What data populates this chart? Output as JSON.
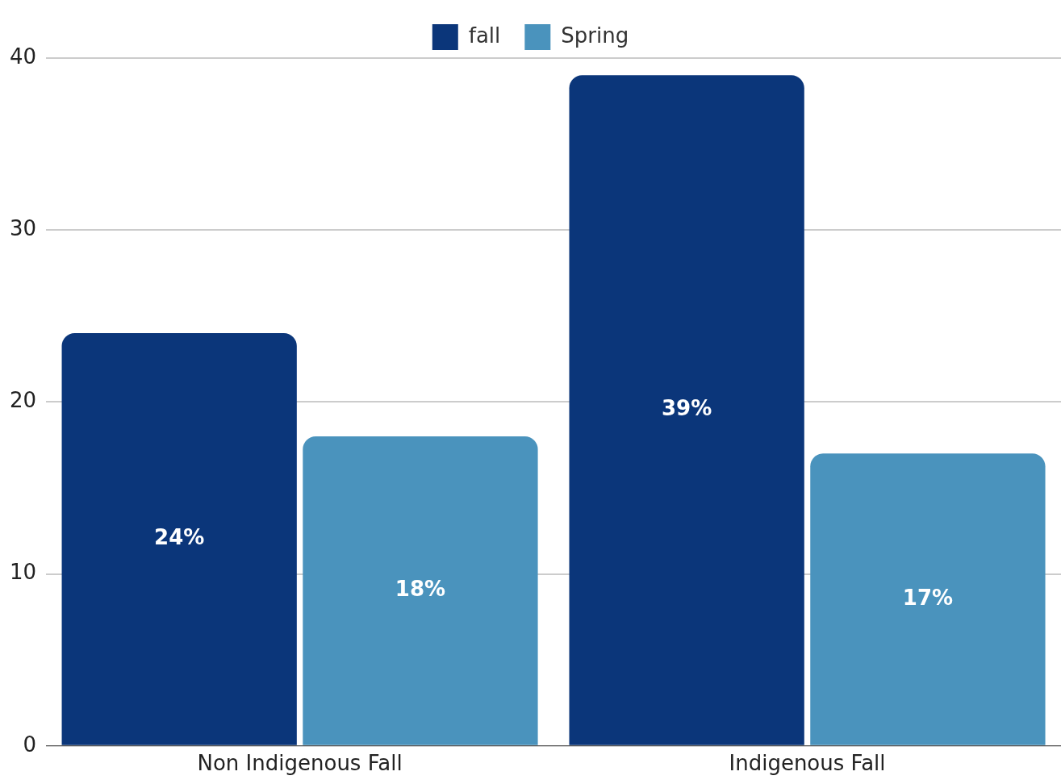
{
  "chart_data": {
    "type": "bar",
    "categories": [
      "Non Indigenous Fall",
      "Indigenous Fall"
    ],
    "series": [
      {
        "name": "fall",
        "color": "#0b367a",
        "values": [
          24,
          39
        ],
        "value_labels": [
          "24%",
          "39%"
        ]
      },
      {
        "name": "Spring",
        "color": "#4a93bd",
        "values": [
          18,
          17
        ],
        "value_labels": [
          "18%",
          "17%"
        ]
      }
    ],
    "ylim": [
      0,
      40
    ],
    "yticks": [
      0,
      10,
      20,
      30,
      40
    ],
    "grid": "y",
    "legend": "top"
  }
}
